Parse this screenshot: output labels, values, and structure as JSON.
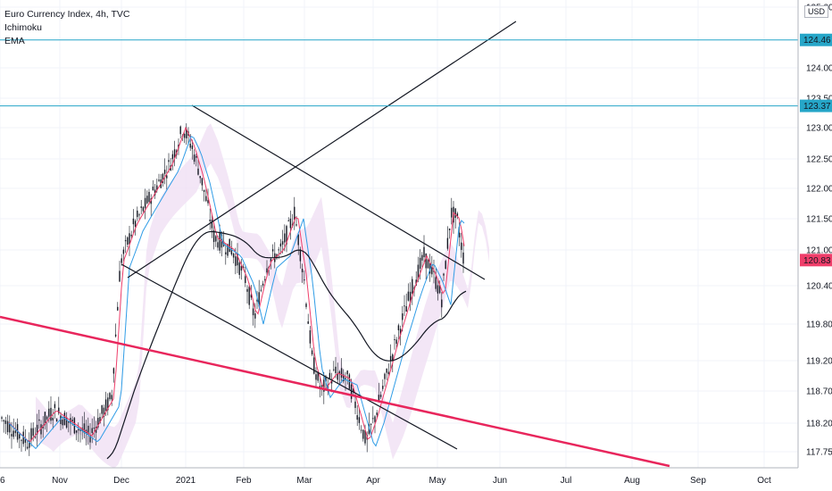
{
  "header": {
    "symbol": "Euro Currency Index, 4h, TVC",
    "indicator_1": "Ichimoku",
    "indicator_2": "EMA",
    "currency": "USD"
  },
  "chart_data": {
    "type": "candlestick",
    "x_tick_labels": [
      "6",
      "Nov",
      "Dec",
      "2021",
      "Feb",
      "Mar",
      "Apr",
      "May",
      "Jun",
      "Jul",
      "Aug",
      "Sep",
      "Oct"
    ],
    "y_tick_labels": [
      "125.00",
      "124.00",
      "123.50",
      "123.00",
      "122.50",
      "122.00",
      "121.50",
      "121.00",
      "120.40",
      "119.80",
      "119.20",
      "118.70",
      "118.20",
      "117.75"
    ],
    "ylim": [
      117.5,
      125.1
    ],
    "price_labels": [
      {
        "value": 124.46,
        "label": "124.46",
        "color": "#26a6c8"
      },
      {
        "value": 123.37,
        "label": "123.37",
        "color": "#26a6c8"
      },
      {
        "value": 120.83,
        "label": "120.83",
        "color": "#ef3e6a"
      }
    ],
    "horizontal_lines": [
      124.46,
      123.37
    ],
    "colors": {
      "candles": "#131722",
      "tenkan": "#ef3e6a",
      "kijun": "#2f9ce6",
      "ema": "#131722",
      "cloud_bull": "#f0e0f4",
      "cloud_bear": "#fde2e6",
      "trendline": "#131722",
      "red_trendline": "#e8265c",
      "hline": "#26a6c8"
    }
  }
}
